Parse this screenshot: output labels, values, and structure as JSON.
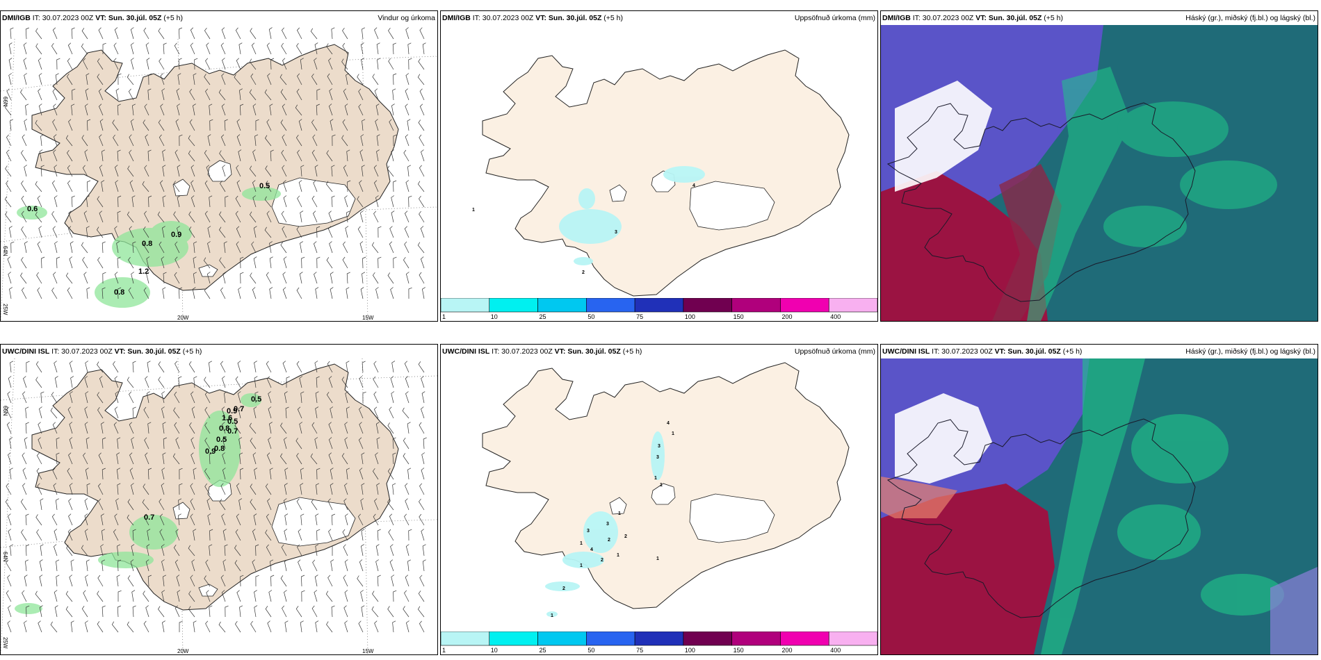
{
  "colors": {
    "land": "#ecdccb",
    "land_precip": "#fbf0e3",
    "wind_precip_green": "#8fe69a",
    "cloud_high_green": "#1fc889",
    "cloud_mid_red": "#9b1342",
    "cloud_low_blue": "#5a54c8",
    "cloud_base_teal": "#1f6b78"
  },
  "rows": [
    {
      "model": "DMI/IGB",
      "it_text": "IT: 30.07.2023 00Z",
      "vt_text": "VT: Sun. 30.júl. 05Z",
      "lead": "(+5 h)",
      "panels": {
        "wind": {
          "field": "Vindur og úrkoma",
          "values": [
            "0.6",
            "0.8",
            "0.9",
            "1.2",
            "0.8",
            "0.5"
          ]
        },
        "precip": {
          "field": "Uppsöfnuð úrkoma (mm)",
          "values": [
            "1",
            "3",
            "2",
            "4"
          ]
        },
        "cloud": {
          "field": "Háský (gr.), miðský (fj.bl.) og lágský (bl.)"
        }
      }
    },
    {
      "model": "UWC/DINI ISL",
      "it_text": "IT: 30.07.2023 00Z",
      "vt_text": "VT: Sun. 30.júl. 05Z",
      "lead": "(+5 h)",
      "panels": {
        "wind": {
          "field": "Vindur og úrkoma",
          "values": [
            "0.5",
            "0.7",
            "0.9",
            "1.6",
            "0.5",
            "0.8",
            "0.7",
            "0.5",
            "0.8",
            "0.9",
            "0.7"
          ]
        },
        "precip": {
          "field": "Uppsöfnuð úrkoma (mm)",
          "values": [
            "4",
            "1",
            "3",
            "3",
            "1",
            "1",
            "1",
            "3",
            "2",
            "3",
            "2",
            "1",
            "4",
            "1",
            "2",
            "1",
            "1",
            "2",
            "1"
          ]
        },
        "cloud": {
          "field": "Háský (gr.), miðský (fj.bl.) og lágský (bl.)"
        }
      }
    }
  ],
  "axis_labels": {
    "lat_66": "66N",
    "lat_64": "64N",
    "lon_25": "25W",
    "lon_20": "20W",
    "lon_15": "15W"
  },
  "colorbar": {
    "ticks": [
      "1",
      "10",
      "25",
      "50",
      "75",
      "100",
      "150",
      "200",
      "400"
    ],
    "colors": [
      "#b8f5f5",
      "#00f0f0",
      "#00c8f0",
      "#2864f0",
      "#2030b8",
      "#700050",
      "#b0007c",
      "#f000b0",
      "#f8b0f0"
    ]
  }
}
